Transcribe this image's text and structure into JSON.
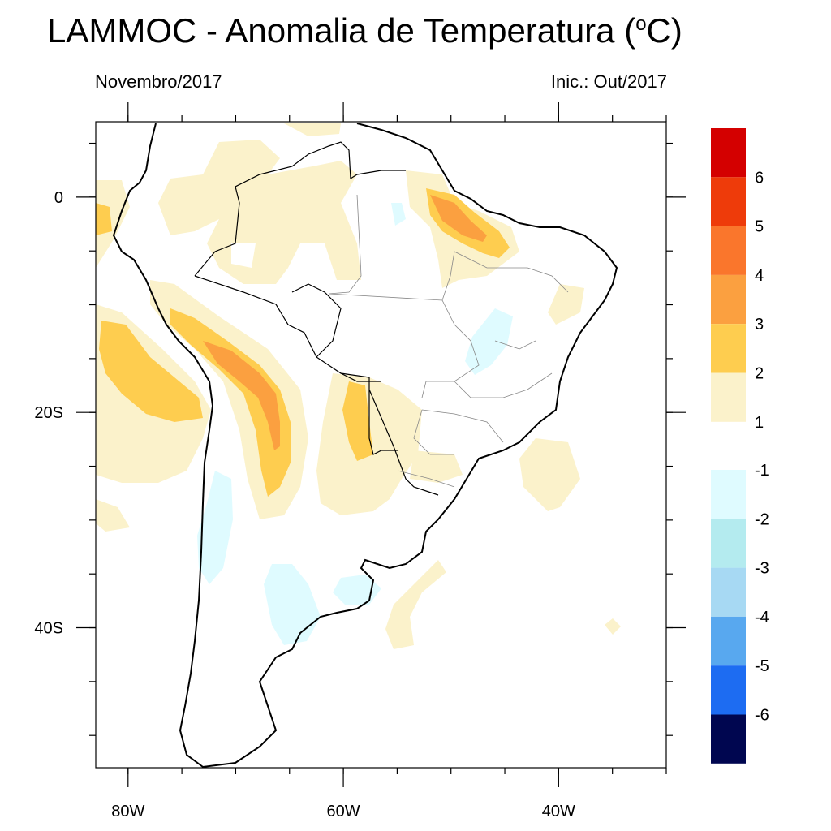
{
  "title": "LAMMOC - Anomalia de Temperatura (",
  "title_sup": "o",
  "title_end": "C)",
  "subtitle_left": "Novembro/2017",
  "subtitle_right": "Inic.: Out/2017",
  "map": {
    "lon_range": [
      -83,
      -30
    ],
    "lat_range": [
      -53,
      7
    ],
    "lon_ticks": [
      {
        "value": -80,
        "label": "80W"
      },
      {
        "value": -60,
        "label": "60W"
      },
      {
        "value": -40,
        "label": "40W"
      }
    ],
    "lat_ticks": [
      {
        "value": 0,
        "label": "0"
      },
      {
        "value": -20,
        "label": "20S"
      },
      {
        "value": -40,
        "label": "40S"
      }
    ]
  },
  "colorbar": {
    "positive": [
      {
        "label": "6",
        "color": "#d40000"
      },
      {
        "label": "5",
        "color": "#ee3b0a"
      },
      {
        "label": "4",
        "color": "#fa762c"
      },
      {
        "label": "3",
        "color": "#fba040"
      },
      {
        "label": "2",
        "color": "#fecd4f"
      },
      {
        "label": "1",
        "color": "#fbf2cb"
      }
    ],
    "negative": [
      {
        "label": "-1",
        "color": "#dffbff"
      },
      {
        "label": "-2",
        "color": "#b4ebef"
      },
      {
        "label": "-3",
        "color": "#a7d9f3"
      },
      {
        "label": "-4",
        "color": "#58a8ef"
      },
      {
        "label": "-5",
        "color": "#1d6cf2"
      },
      {
        "label": "-6",
        "color": "#000650"
      }
    ]
  },
  "colors": {
    "anomaly_1_2": "#fbf2cb",
    "anomaly_2_3": "#fecd4f",
    "anomaly_3_4": "#fba040",
    "anomaly_neg_1_2": "#dffbff"
  }
}
